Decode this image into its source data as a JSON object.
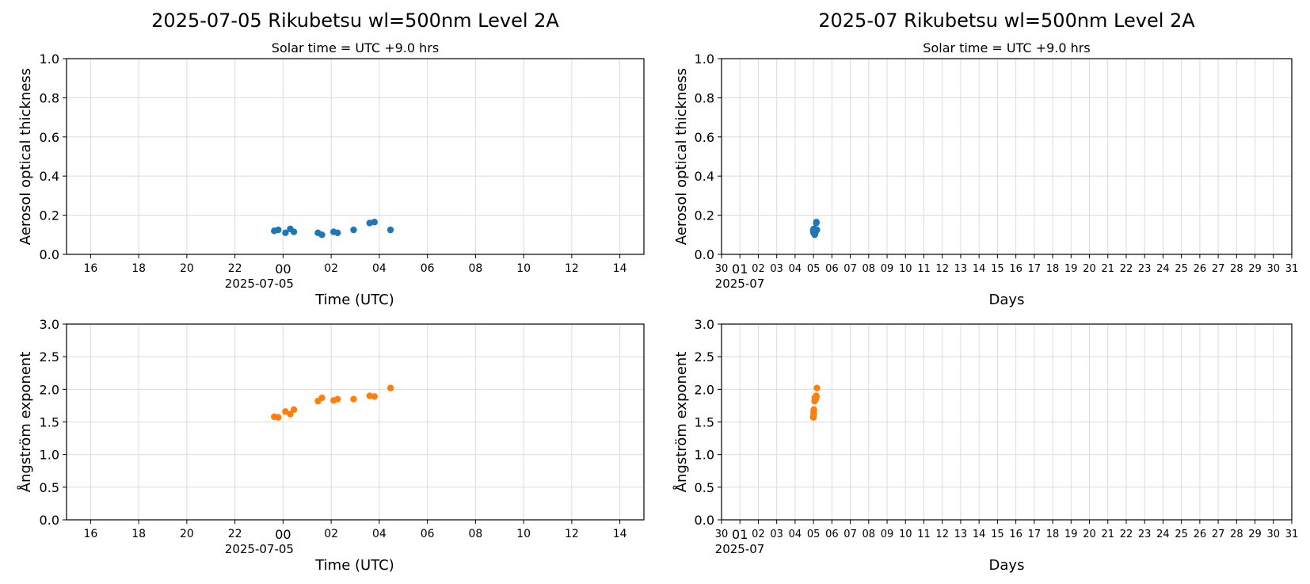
{
  "colors": {
    "aod": "#1f77b4",
    "angstrom": "#ff7f0e"
  },
  "chart_data": [
    {
      "id": "daily-aod",
      "type": "scatter",
      "title": "2025-07-05  Rikubetsu  wl=500nm  Level 2A",
      "subtitle": "Solar time = UTC +9.0 hrs",
      "xlabel": "Time (UTC)",
      "ylabel": "Aerosol optical thickness",
      "x_axis": "time",
      "xlim": [
        "2025-07-04T15:00",
        "2025-07-05T15:00"
      ],
      "xticks": [
        "16",
        "18",
        "20",
        "22",
        "00",
        "02",
        "04",
        "06",
        "08",
        "10",
        "12",
        "14"
      ],
      "xticks_at": [
        "2025-07-04T16:00",
        "2025-07-04T18:00",
        "2025-07-04T20:00",
        "2025-07-04T22:00",
        "2025-07-05T00:00",
        "2025-07-05T02:00",
        "2025-07-05T04:00",
        "2025-07-05T06:00",
        "2025-07-05T08:00",
        "2025-07-05T10:00",
        "2025-07-05T12:00",
        "2025-07-05T14:00"
      ],
      "xtick_sublabel": "2025-07-05",
      "ylim": [
        0,
        1.0
      ],
      "yticks": [
        0.0,
        0.2,
        0.4,
        0.6,
        0.8,
        1.0
      ],
      "ytick_labels": [
        "0.0",
        "0.2",
        "0.4",
        "0.6",
        "0.8",
        "1.0"
      ],
      "grid": true,
      "color_key": "aod",
      "x": [
        "2025-07-04T23:38",
        "2025-07-04T23:48",
        "2025-07-05T00:06",
        "2025-07-05T00:18",
        "2025-07-05T00:27",
        "2025-07-05T01:27",
        "2025-07-05T01:37",
        "2025-07-05T02:06",
        "2025-07-05T02:16",
        "2025-07-05T02:56",
        "2025-07-05T03:36",
        "2025-07-05T03:48",
        "2025-07-05T04:28"
      ],
      "y": [
        0.12,
        0.125,
        0.11,
        0.13,
        0.115,
        0.11,
        0.1,
        0.115,
        0.11,
        0.125,
        0.16,
        0.165,
        0.125
      ]
    },
    {
      "id": "monthly-aod",
      "type": "scatter",
      "title": "2025-07  Rikubetsu  wl=500nm  Level 2A",
      "subtitle": "Solar time = UTC +9.0 hrs",
      "xlabel": "Days",
      "ylabel": "Aerosol optical thickness",
      "x_axis": "time",
      "xlim": [
        "2025-06-30T00:00",
        "2025-07-31T00:00"
      ],
      "xticks": [
        "30",
        "01",
        "02",
        "03",
        "04",
        "05",
        "06",
        "07",
        "08",
        "09",
        "10",
        "11",
        "12",
        "13",
        "14",
        "15",
        "16",
        "17",
        "18",
        "19",
        "20",
        "21",
        "22",
        "23",
        "24",
        "25",
        "26",
        "27",
        "28",
        "29",
        "30",
        "31"
      ],
      "xtick_sublabel": "2025-07",
      "ylim": [
        0,
        1.0
      ],
      "yticks": [
        0.0,
        0.2,
        0.4,
        0.6,
        0.8,
        1.0
      ],
      "ytick_labels": [
        "0.0",
        "0.2",
        "0.4",
        "0.6",
        "0.8",
        "1.0"
      ],
      "grid": true,
      "color_key": "aod",
      "x": [
        "2025-07-04T23:38",
        "2025-07-04T23:48",
        "2025-07-05T00:06",
        "2025-07-05T00:18",
        "2025-07-05T00:27",
        "2025-07-05T01:27",
        "2025-07-05T01:37",
        "2025-07-05T02:06",
        "2025-07-05T02:16",
        "2025-07-05T02:56",
        "2025-07-05T03:36",
        "2025-07-05T03:48",
        "2025-07-05T04:28"
      ],
      "y": [
        0.12,
        0.125,
        0.11,
        0.13,
        0.115,
        0.11,
        0.1,
        0.115,
        0.11,
        0.125,
        0.16,
        0.165,
        0.125
      ]
    },
    {
      "id": "daily-angstrom",
      "type": "scatter",
      "title": "",
      "subtitle": "",
      "xlabel": "Time (UTC)",
      "ylabel": "Ångström exponent",
      "x_axis": "time",
      "xlim": [
        "2025-07-04T15:00",
        "2025-07-05T15:00"
      ],
      "xticks": [
        "16",
        "18",
        "20",
        "22",
        "00",
        "02",
        "04",
        "06",
        "08",
        "10",
        "12",
        "14"
      ],
      "xticks_at": [
        "2025-07-04T16:00",
        "2025-07-04T18:00",
        "2025-07-04T20:00",
        "2025-07-04T22:00",
        "2025-07-05T00:00",
        "2025-07-05T02:00",
        "2025-07-05T04:00",
        "2025-07-05T06:00",
        "2025-07-05T08:00",
        "2025-07-05T10:00",
        "2025-07-05T12:00",
        "2025-07-05T14:00"
      ],
      "xtick_sublabel": "2025-07-05",
      "ylim": [
        0,
        3.0
      ],
      "yticks": [
        0.0,
        0.5,
        1.0,
        1.5,
        2.0,
        2.5,
        3.0
      ],
      "ytick_labels": [
        "0.0",
        "0.5",
        "1.0",
        "1.5",
        "2.0",
        "2.5",
        "3.0"
      ],
      "grid": true,
      "color_key": "angstrom",
      "x": [
        "2025-07-04T23:38",
        "2025-07-04T23:48",
        "2025-07-05T00:06",
        "2025-07-05T00:18",
        "2025-07-05T00:27",
        "2025-07-05T01:27",
        "2025-07-05T01:37",
        "2025-07-05T02:06",
        "2025-07-05T02:16",
        "2025-07-05T02:56",
        "2025-07-05T03:36",
        "2025-07-05T03:48",
        "2025-07-05T04:28"
      ],
      "y": [
        1.58,
        1.57,
        1.66,
        1.62,
        1.69,
        1.82,
        1.87,
        1.83,
        1.85,
        1.85,
        1.9,
        1.89,
        2.02
      ]
    },
    {
      "id": "monthly-angstrom",
      "type": "scatter",
      "title": "",
      "subtitle": "",
      "xlabel": "Days",
      "ylabel": "Ångström exponent",
      "x_axis": "time",
      "xlim": [
        "2025-06-30T00:00",
        "2025-07-31T00:00"
      ],
      "xticks": [
        "30",
        "01",
        "02",
        "03",
        "04",
        "05",
        "06",
        "07",
        "08",
        "09",
        "10",
        "11",
        "12",
        "13",
        "14",
        "15",
        "16",
        "17",
        "18",
        "19",
        "20",
        "21",
        "22",
        "23",
        "24",
        "25",
        "26",
        "27",
        "28",
        "29",
        "30",
        "31"
      ],
      "xtick_sublabel": "2025-07",
      "ylim": [
        0,
        3.0
      ],
      "yticks": [
        0.0,
        0.5,
        1.0,
        1.5,
        2.0,
        2.5,
        3.0
      ],
      "ytick_labels": [
        "0.0",
        "0.5",
        "1.0",
        "1.5",
        "2.0",
        "2.5",
        "3.0"
      ],
      "grid": true,
      "color_key": "angstrom",
      "x": [
        "2025-07-04T23:38",
        "2025-07-04T23:48",
        "2025-07-05T00:06",
        "2025-07-05T00:18",
        "2025-07-05T00:27",
        "2025-07-05T01:27",
        "2025-07-05T01:37",
        "2025-07-05T02:06",
        "2025-07-05T02:16",
        "2025-07-05T02:56",
        "2025-07-05T03:36",
        "2025-07-05T03:48",
        "2025-07-05T04:28"
      ],
      "y": [
        1.58,
        1.57,
        1.66,
        1.62,
        1.69,
        1.82,
        1.87,
        1.83,
        1.85,
        1.85,
        1.9,
        1.89,
        2.02
      ]
    }
  ]
}
